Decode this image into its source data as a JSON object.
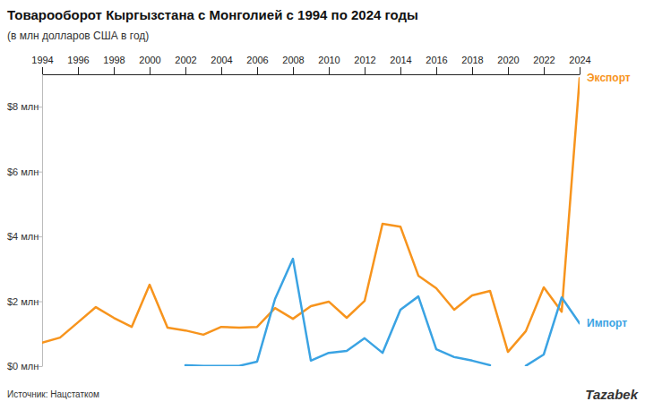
{
  "chart_data": {
    "type": "line",
    "title": "Товарооборот Кыргызстана с Монголией с 1994 по 2024 годы",
    "subtitle": "(в млн долларов США в год)",
    "source": "Источник: Нацстатком",
    "annotations": [
      "Tazabek"
    ],
    "x": [
      1994,
      1995,
      1996,
      1997,
      1998,
      1999,
      2000,
      2001,
      2002,
      2003,
      2004,
      2005,
      2006,
      2007,
      2008,
      2009,
      2010,
      2011,
      2012,
      2013,
      2014,
      2015,
      2016,
      2017,
      2018,
      2019,
      2020,
      2021,
      2022,
      2023,
      2024
    ],
    "series": [
      {
        "name": "Экспорт",
        "color": "#f7941d",
        "values": [
          0.72,
          0.88,
          1.35,
          1.82,
          1.49,
          1.21,
          2.51,
          1.19,
          1.1,
          0.97,
          1.21,
          1.19,
          1.21,
          1.79,
          1.46,
          1.85,
          1.99,
          1.49,
          2.01,
          4.39,
          4.3,
          2.79,
          2.4,
          1.74,
          2.18,
          2.32,
          0.44,
          1.08,
          2.43,
          1.68,
          8.88
        ]
      },
      {
        "name": "Импорт",
        "color": "#3aa3e3",
        "values": [
          null,
          null,
          null,
          null,
          null,
          null,
          null,
          null,
          0.03,
          0.01,
          0.01,
          0.01,
          0.14,
          2.07,
          3.31,
          0.17,
          0.41,
          0.47,
          0.86,
          0.41,
          1.74,
          2.15,
          0.52,
          0.28,
          0.17,
          0.03,
          null,
          0.01,
          0.36,
          2.12,
          1.32
        ]
      }
    ],
    "xlim": [
      1994,
      2024
    ],
    "xticks": [
      1994,
      1996,
      1998,
      2000,
      2002,
      2004,
      2006,
      2008,
      2010,
      2012,
      2014,
      2016,
      2018,
      2020,
      2022,
      2024
    ],
    "ylim": [
      0,
      9
    ],
    "yticks": [
      {
        "value": 0,
        "label": "$0 млн"
      },
      {
        "value": 2,
        "label": "$2 млн"
      },
      {
        "value": 4,
        "label": "$4 млн"
      },
      {
        "value": 6,
        "label": "$6 млн"
      },
      {
        "value": 8,
        "label": "$8 млн"
      }
    ],
    "grid": false
  }
}
